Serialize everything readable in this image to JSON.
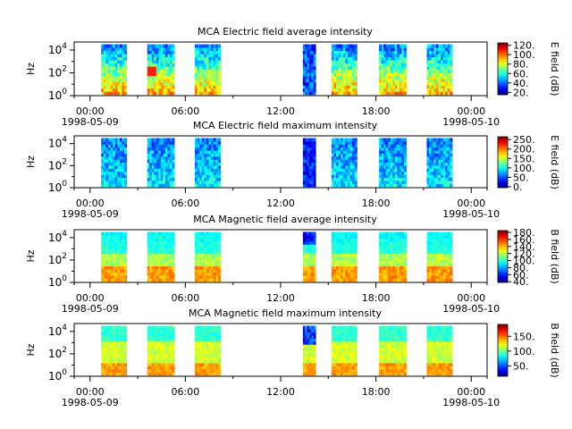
{
  "chart_data": [
    {
      "type": "heatmap",
      "title": "MCA  Electric field average intensity",
      "ylabel": "Hz",
      "colorbar_label": "E field (dB)",
      "colorbar_ticks": [
        "20.",
        "40.",
        "60.",
        "80.",
        "100.",
        "120."
      ],
      "colorbar_range": [
        15,
        125
      ],
      "yscale": "log",
      "y_tick_exponents": [
        "0",
        "2",
        "4"
      ],
      "x_ticks": [
        {
          "time": "00:00",
          "date": "1998-05-09"
        },
        {
          "time": "06:00",
          "date": ""
        },
        {
          "time": "12:00",
          "date": ""
        },
        {
          "time": "18:00",
          "date": ""
        },
        {
          "time": "00:00",
          "date": "1998-05-10"
        }
      ],
      "x_minor_ticks_hours": [
        -1,
        3,
        9,
        15,
        21,
        25
      ],
      "xlim_hours": [
        -1,
        25
      ],
      "data_intervals_hours": [
        [
          0.7,
          2.3
        ],
        [
          3.6,
          5.3
        ],
        [
          6.6,
          8.2
        ],
        [
          13.4,
          14.2
        ],
        [
          15.2,
          16.8
        ],
        [
          18.2,
          19.9
        ],
        [
          21.2,
          22.8
        ]
      ],
      "intensity_profile": "avg-electric"
    },
    {
      "type": "heatmap",
      "title": "MCA  Electric field maximum intensity",
      "ylabel": "Hz",
      "colorbar_label": "E field (dB)",
      "colorbar_ticks": [
        "0.",
        "50.",
        "100.",
        "150.",
        "200.",
        "250."
      ],
      "colorbar_range": [
        -5,
        265
      ],
      "yscale": "log",
      "y_tick_exponents": [
        "0",
        "2",
        "4"
      ],
      "x_ticks": [
        {
          "time": "00:00",
          "date": "1998-05-09"
        },
        {
          "time": "06:00",
          "date": ""
        },
        {
          "time": "12:00",
          "date": ""
        },
        {
          "time": "18:00",
          "date": ""
        },
        {
          "time": "00:00",
          "date": "1998-05-10"
        }
      ],
      "x_minor_ticks_hours": [
        -1,
        3,
        9,
        15,
        21,
        25
      ],
      "xlim_hours": [
        -1,
        25
      ],
      "data_intervals_hours": [
        [
          0.7,
          2.3
        ],
        [
          3.6,
          5.3
        ],
        [
          6.6,
          8.2
        ],
        [
          13.4,
          14.2
        ],
        [
          15.2,
          16.8
        ],
        [
          18.2,
          19.9
        ],
        [
          21.2,
          22.8
        ]
      ],
      "intensity_profile": "max-electric"
    },
    {
      "type": "heatmap",
      "title": "MCA  Magnetic field average intensity",
      "ylabel": "Hz",
      "colorbar_label": "B field (dB)",
      "colorbar_ticks": [
        "40.",
        "60.",
        "80.",
        "100.",
        "120.",
        "140.",
        "160.",
        "180."
      ],
      "colorbar_range": [
        38,
        185
      ],
      "yscale": "log",
      "y_tick_exponents": [
        "0",
        "2",
        "4"
      ],
      "x_ticks": [
        {
          "time": "00:00",
          "date": "1998-05-09"
        },
        {
          "time": "06:00",
          "date": ""
        },
        {
          "time": "12:00",
          "date": ""
        },
        {
          "time": "18:00",
          "date": ""
        },
        {
          "time": "00:00",
          "date": "1998-05-10"
        }
      ],
      "x_minor_ticks_hours": [
        -1,
        3,
        9,
        15,
        21,
        25
      ],
      "xlim_hours": [
        -1,
        25
      ],
      "data_intervals_hours": [
        [
          0.7,
          2.3
        ],
        [
          3.6,
          5.3
        ],
        [
          6.6,
          8.2
        ],
        [
          13.4,
          14.2
        ],
        [
          15.2,
          16.8
        ],
        [
          18.2,
          19.9
        ],
        [
          21.2,
          22.8
        ]
      ],
      "intensity_profile": "avg-magnetic"
    },
    {
      "type": "heatmap",
      "title": "MCA  Magnetic field maximum intensity",
      "ylabel": "Hz",
      "colorbar_label": "B field (dB)",
      "colorbar_ticks": [
        "50.",
        "100.",
        "150."
      ],
      "colorbar_range": [
        15,
        190
      ],
      "yscale": "log",
      "y_tick_exponents": [
        "0",
        "2",
        "4"
      ],
      "x_ticks": [
        {
          "time": "00:00",
          "date": "1998-05-09"
        },
        {
          "time": "06:00",
          "date": ""
        },
        {
          "time": "12:00",
          "date": ""
        },
        {
          "time": "18:00",
          "date": ""
        },
        {
          "time": "00:00",
          "date": "1998-05-10"
        }
      ],
      "x_minor_ticks_hours": [
        -1,
        3,
        9,
        15,
        21,
        25
      ],
      "xlim_hours": [
        -1,
        25
      ],
      "data_intervals_hours": [
        [
          0.7,
          2.3
        ],
        [
          3.6,
          5.3
        ],
        [
          6.6,
          8.2
        ],
        [
          13.4,
          14.2
        ],
        [
          15.2,
          16.8
        ],
        [
          18.2,
          19.9
        ],
        [
          21.2,
          22.8
        ]
      ],
      "intensity_profile": "max-magnetic"
    }
  ]
}
